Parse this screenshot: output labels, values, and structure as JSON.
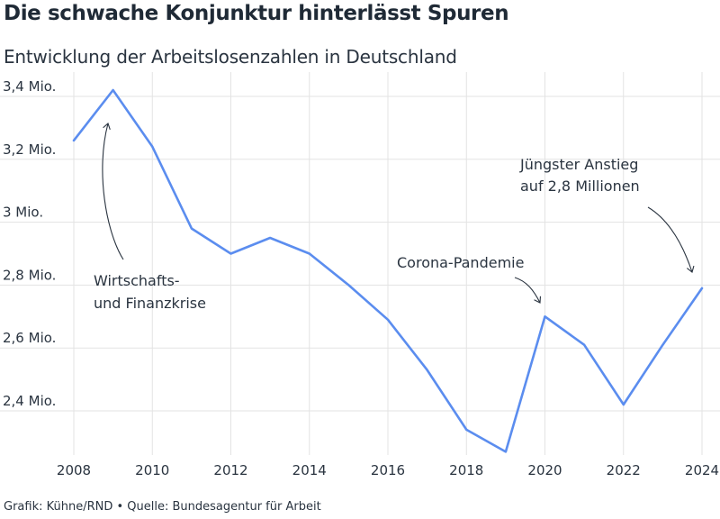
{
  "header": {
    "title": "Die schwache Konjunktur hinterlässt Spuren",
    "subtitle": "Entwicklung der Arbeitslosenzahlen in Deutschland"
  },
  "footer": {
    "credit": "Grafik: Kühne/RND • Quelle: Bundesagentur für Arbeit"
  },
  "chart_data": {
    "type": "line",
    "title": "Die schwache Konjunktur hinterlässt Spuren",
    "subtitle": "Entwicklung der Arbeitslosenzahlen in Deutschland",
    "xlabel": "",
    "ylabel": "",
    "x": [
      2008,
      2009,
      2010,
      2011,
      2012,
      2013,
      2014,
      2015,
      2016,
      2017,
      2018,
      2019,
      2020,
      2021,
      2022,
      2023,
      2024
    ],
    "series": [
      {
        "values": [
          3.26,
          3.42,
          3.24,
          2.98,
          2.9,
          2.95,
          2.9,
          2.8,
          2.69,
          2.53,
          2.34,
          2.27,
          2.7,
          2.61,
          2.42,
          2.61,
          2.79
        ],
        "color": "#5b8def"
      }
    ],
    "xlim": [
      2008,
      2024
    ],
    "ylim": [
      2.25,
      3.4
    ],
    "x_ticks": [
      2008,
      2010,
      2012,
      2014,
      2016,
      2018,
      2020,
      2022,
      2024
    ],
    "x_tick_labels": [
      "2008",
      "2010",
      "2012",
      "2014",
      "2016",
      "2018",
      "2020",
      "2022",
      "2024"
    ],
    "y_ticks": [
      2.4,
      2.6,
      2.8,
      3.0,
      3.2,
      3.4
    ],
    "y_tick_labels": [
      "2,4 Mio.",
      "2,6 Mio.",
      "2,8 Mio.",
      "3 Mio.",
      "3,2 Mio.",
      "3,4 Mio."
    ],
    "grid": true,
    "annotations": [
      {
        "lines": [
          "Wirtschafts-",
          "und Finanzkrise"
        ],
        "x": 2009,
        "y": 3.42
      },
      {
        "lines": [
          "Corona-Pandemie"
        ],
        "x": 2020,
        "y": 2.7
      },
      {
        "lines": [
          "Jüngster Anstieg",
          "auf 2,8 Millionen"
        ],
        "x": 2024,
        "y": 2.79
      }
    ]
  }
}
